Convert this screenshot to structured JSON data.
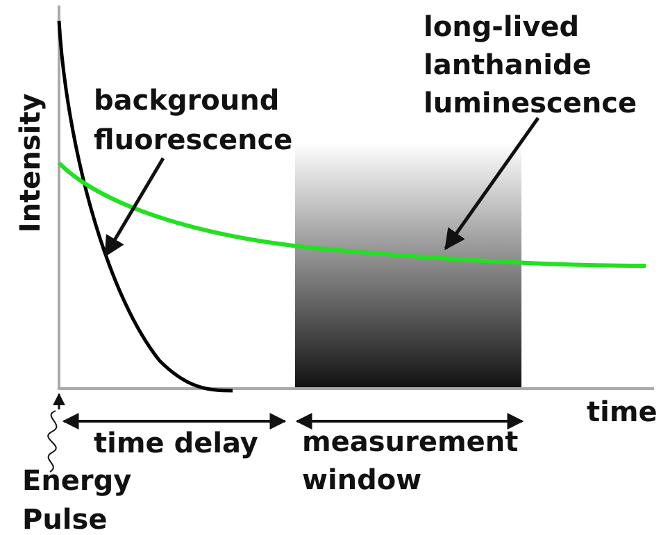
{
  "axes": {
    "y_label": "Intensity",
    "x_label": "time"
  },
  "annotations": {
    "background": [
      "background",
      "fluorescence"
    ],
    "lanthanide": [
      "long-lived",
      "lanthanide",
      "luminescence"
    ],
    "time_delay": "time delay",
    "measurement": [
      "measurement",
      "window"
    ],
    "pulse": [
      "Energy",
      "Pulse"
    ]
  }
}
